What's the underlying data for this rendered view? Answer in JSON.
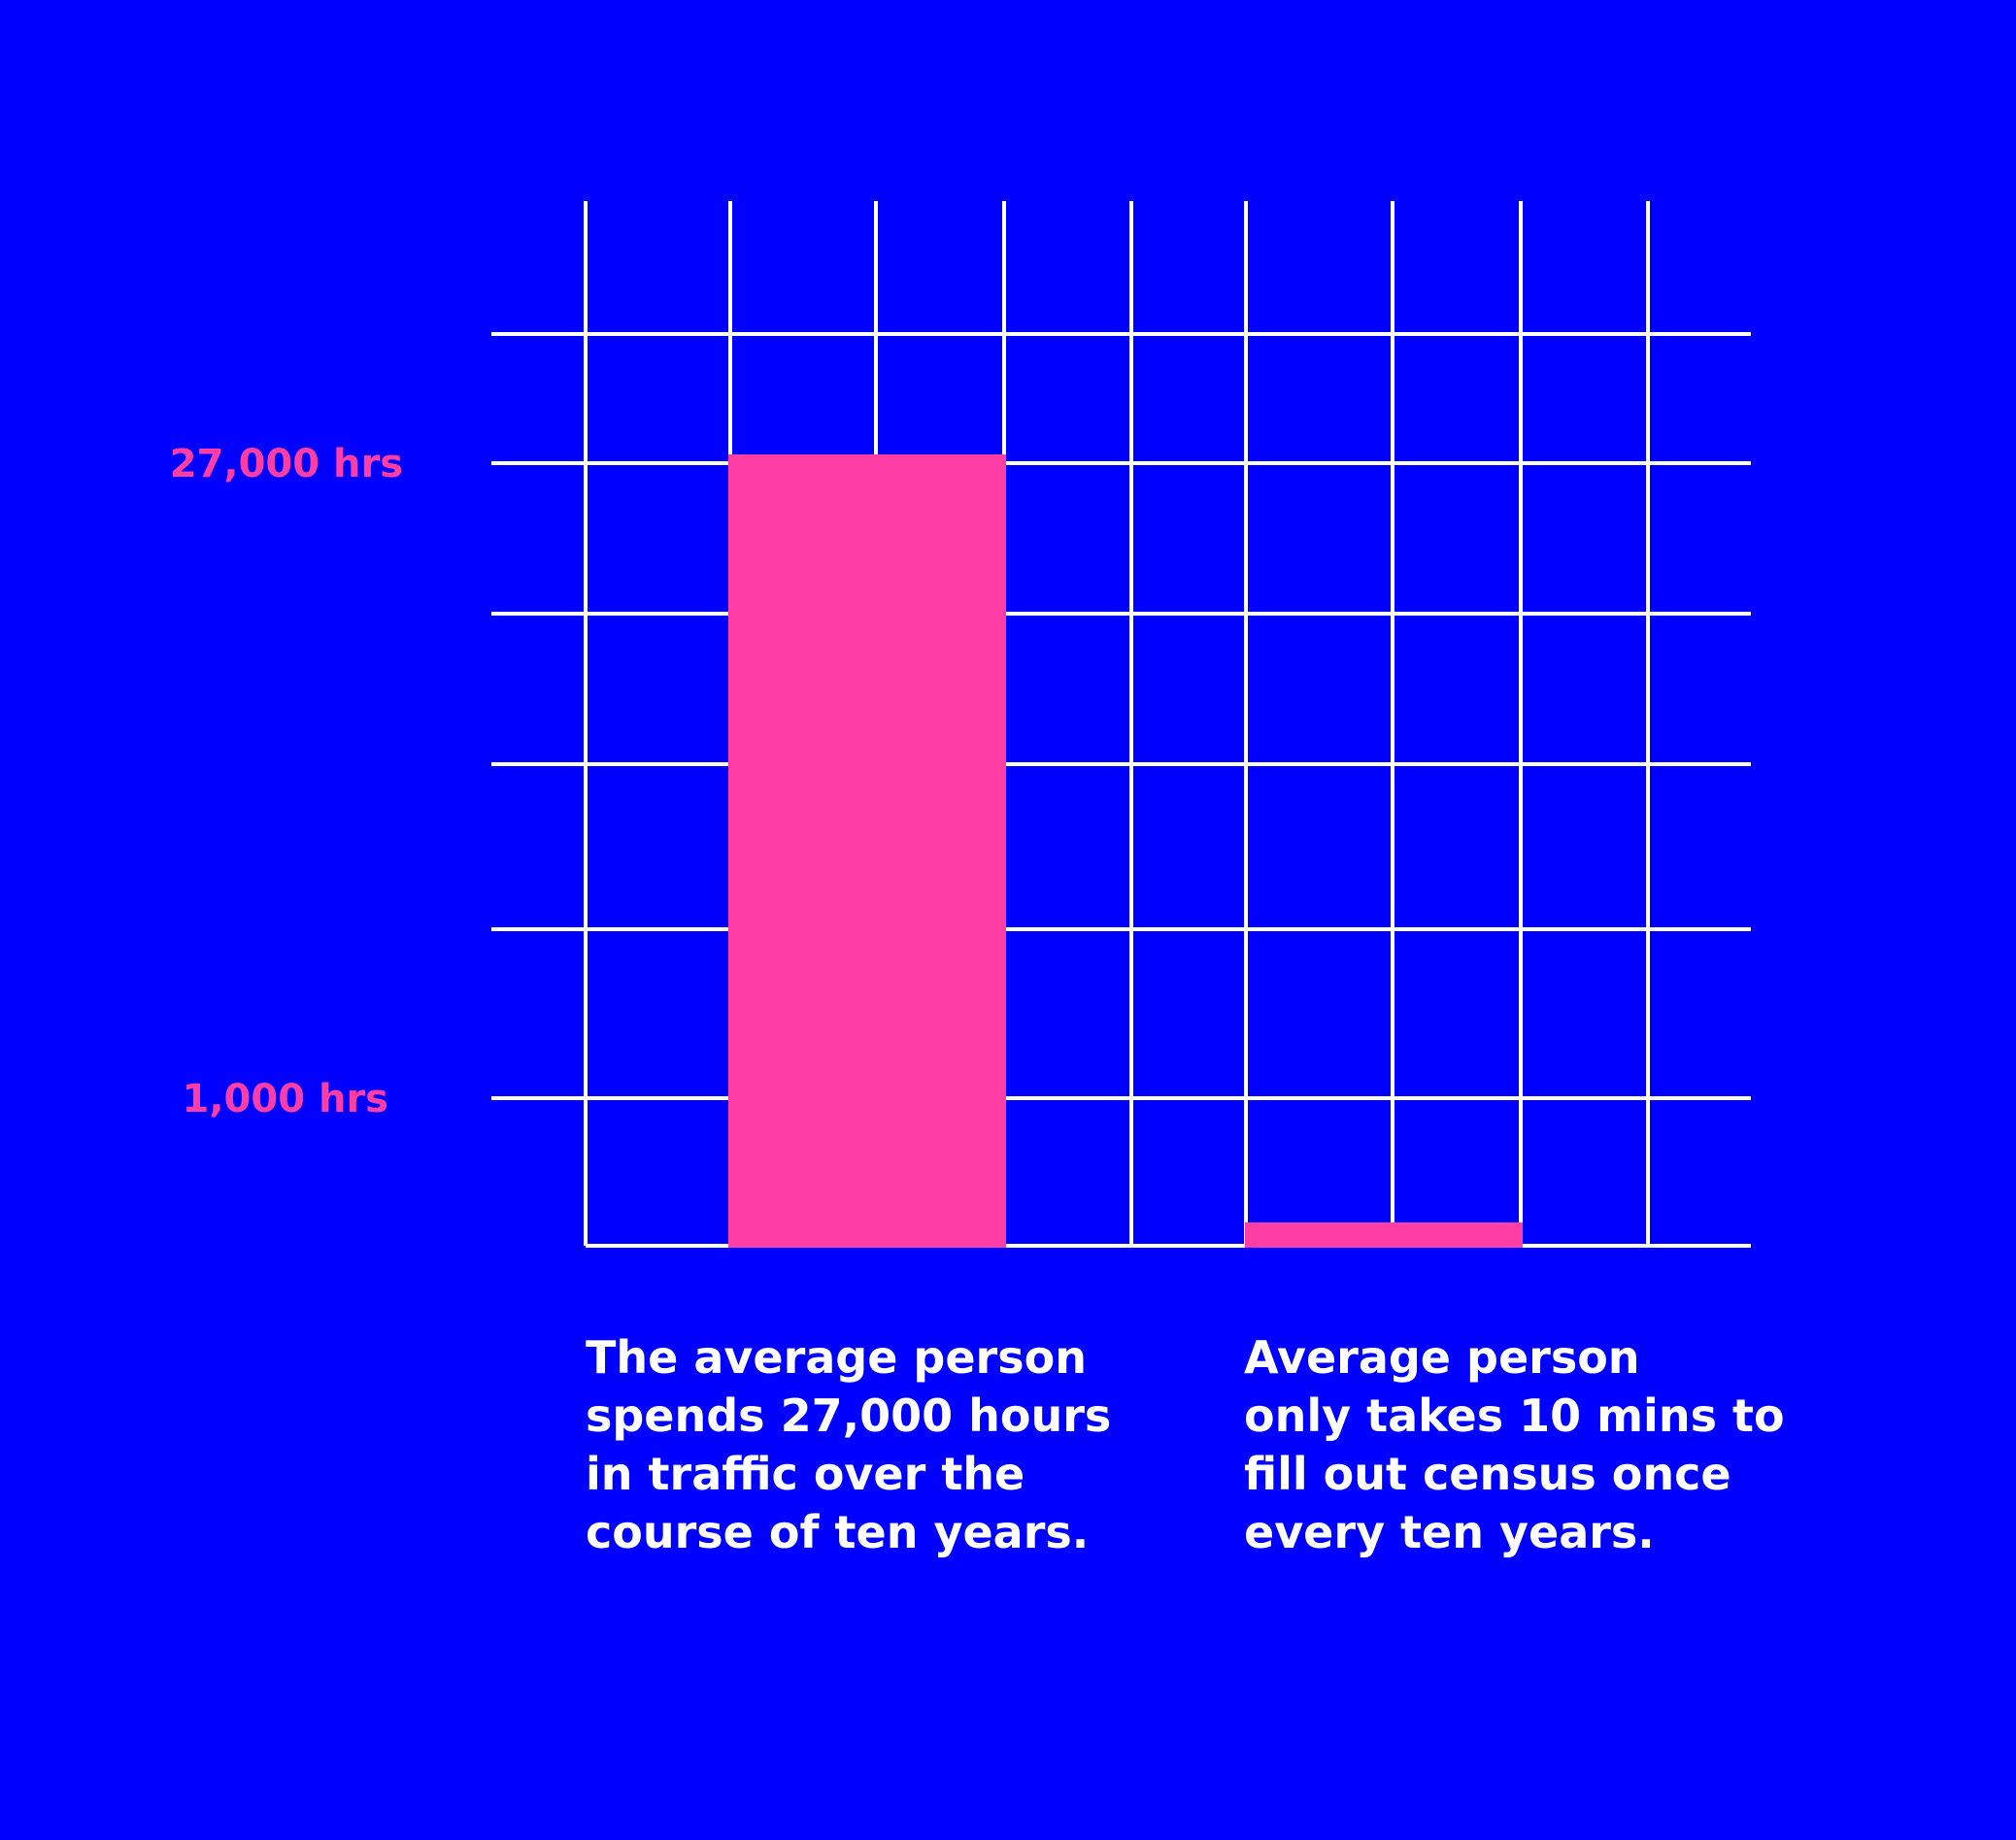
{
  "colors": {
    "background": "#0000ff",
    "grid": "#ffffff",
    "bar": "#ff3ea5",
    "tick_label": "#ff3ea5",
    "caption_text": "#ffffff"
  },
  "chart_data": {
    "type": "bar",
    "categories": [
      "traffic",
      "census"
    ],
    "values": [
      27000,
      10
    ],
    "units": "hrs",
    "y_ticks": [
      {
        "value": 1000,
        "label": "1,000 hrs"
      },
      {
        "value": 27000,
        "label": "27,000 hrs"
      }
    ],
    "scale": "non-linear (illustrative)",
    "grid": true,
    "legend": "none",
    "captions": [
      "The average person\nspends 27,000 hours\nin traffic over the\ncourse of ten years.",
      "Average person\nonly takes 10 mins to\nfill out census once\nevery ten years."
    ]
  }
}
